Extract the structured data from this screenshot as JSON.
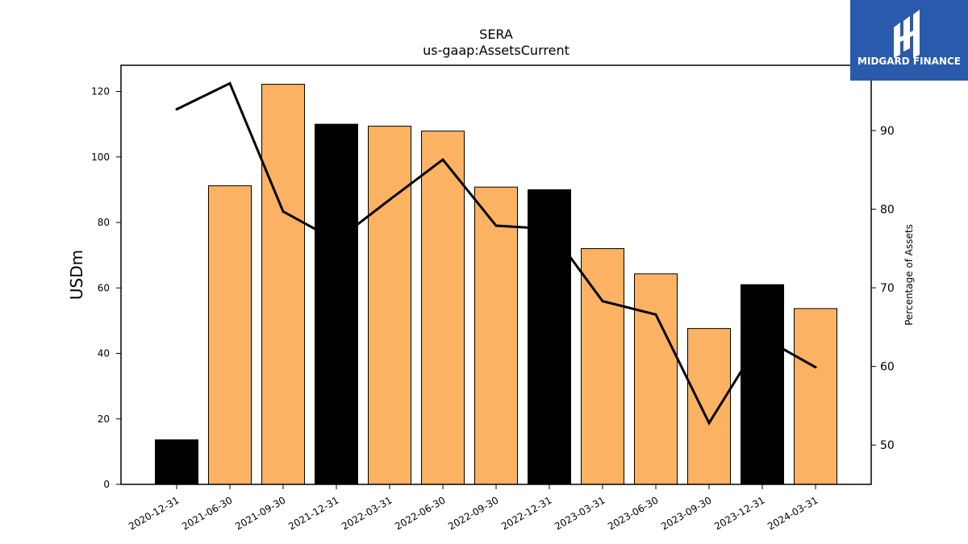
{
  "logo": {
    "text": "MIDGARD FINANCE",
    "bg_color": "#2a5aab"
  },
  "chart_data": {
    "type": "bar",
    "title": "SERA",
    "subtitle": "us-gaap:AssetsCurrent",
    "ylabel": "USDm",
    "y2label": "Percentage of Assets",
    "categories": [
      "2020-12-31",
      "2021-06-30",
      "2021-09-30",
      "2021-12-31",
      "2022-03-31",
      "2022-06-30",
      "2022-09-30",
      "2022-12-31",
      "2023-03-31",
      "2023-06-30",
      "2023-09-30",
      "2023-12-31",
      "2024-03-31"
    ],
    "series": [
      {
        "values": [
          13.6,
          91.2,
          122.2,
          110.0,
          109.4,
          107.9,
          90.8,
          90.0,
          72.0,
          64.3,
          47.6,
          61.0,
          53.7
        ],
        "colors": [
          "#000000",
          "#fbb262",
          "#fbb262",
          "#000000",
          "#fbb262",
          "#fbb262",
          "#fbb262",
          "#000000",
          "#fbb262",
          "#fbb262",
          "#fbb262",
          "#000000",
          "#fbb262"
        ]
      },
      {
        "axis": "right",
        "color": "#000000",
        "values": [
          92.7,
          96.0,
          79.7,
          76.0,
          81.2,
          86.3,
          77.9,
          77.5,
          68.3,
          66.6,
          52.8,
          63.7,
          59.9
        ]
      }
    ],
    "ylim": [
      0,
      128
    ],
    "yticks": [
      0,
      20,
      40,
      60,
      80,
      100,
      120
    ],
    "y2lim": [
      45,
      98.3
    ],
    "y2ticks": [
      50,
      60,
      70,
      80,
      90
    ],
    "grid": false
  }
}
